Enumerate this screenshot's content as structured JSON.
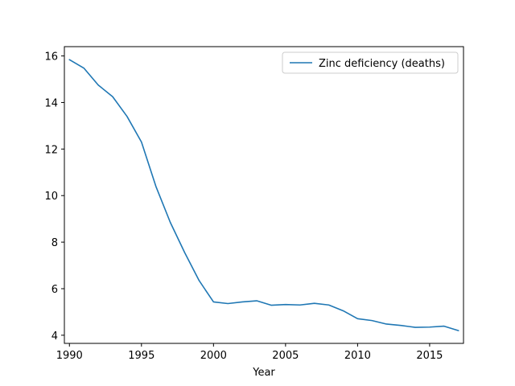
{
  "chart_data": {
    "type": "line",
    "title": "",
    "xlabel": "Year",
    "ylabel": "",
    "xlim": [
      1989.65,
      2017.35
    ],
    "ylim": [
      3.65,
      16.4
    ],
    "xticks": [
      1990,
      1995,
      2000,
      2005,
      2010,
      2015
    ],
    "yticks": [
      4,
      6,
      8,
      10,
      12,
      14,
      16
    ],
    "grid": false,
    "legend": "top-right",
    "x": [
      1990,
      1991,
      1992,
      1993,
      1994,
      1995,
      1996,
      1997,
      1998,
      1999,
      2000,
      2001,
      2002,
      2003,
      2004,
      2005,
      2006,
      2007,
      2008,
      2009,
      2010,
      2011,
      2012,
      2013,
      2014,
      2015,
      2016,
      2017
    ],
    "series": [
      {
        "name": "Zinc deficiency (deaths)",
        "color": "#1f77b4",
        "values": [
          15.84,
          15.48,
          14.75,
          14.25,
          13.4,
          12.3,
          10.4,
          8.85,
          7.55,
          6.35,
          5.43,
          5.36,
          5.43,
          5.48,
          5.29,
          5.32,
          5.3,
          5.37,
          5.3,
          5.05,
          4.71,
          4.63,
          4.48,
          4.42,
          4.34,
          4.35,
          4.39,
          4.2
        ]
      }
    ]
  }
}
